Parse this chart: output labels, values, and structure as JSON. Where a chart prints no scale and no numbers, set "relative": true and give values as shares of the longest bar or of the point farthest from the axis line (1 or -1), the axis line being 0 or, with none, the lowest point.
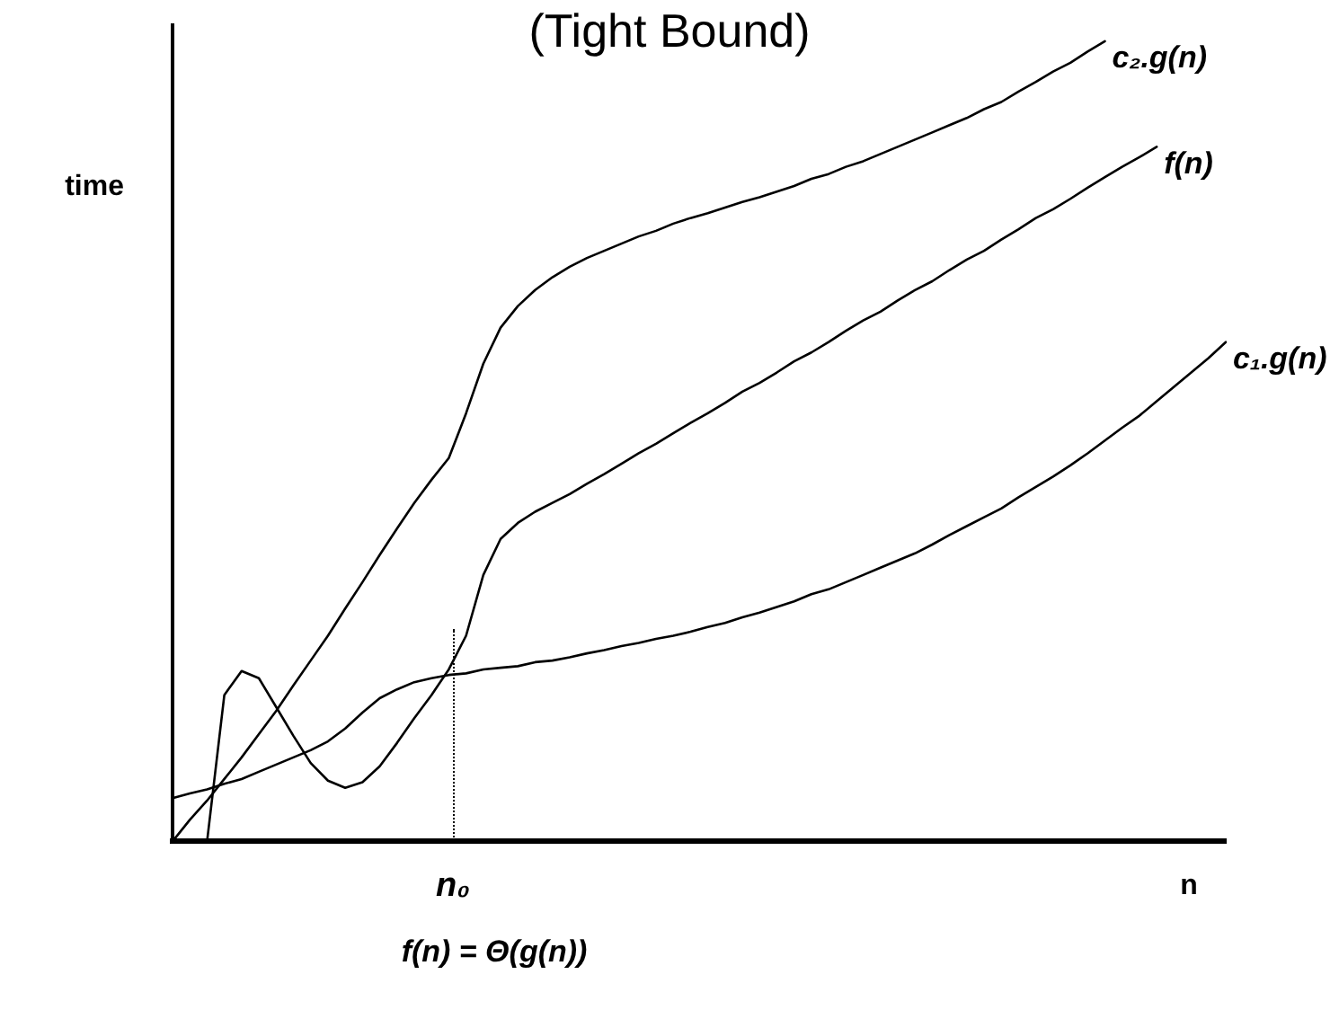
{
  "chart_data": {
    "type": "line",
    "title": "(Tight Bound)",
    "xlabel": "n",
    "ylabel": "time",
    "annotations": [
      "n₀",
      "f(n) = Θ(g(n))"
    ],
    "relative": true,
    "marker": "none",
    "line_style": "solid",
    "tick_labels": "x",
    "categories": [
      null,
      null,
      null,
      null,
      null,
      null,
      null,
      null,
      null,
      null,
      null,
      null,
      null,
      null,
      null,
      null,
      null,
      null,
      null,
      null,
      null,
      null,
      null,
      null,
      null,
      null,
      null,
      null,
      null,
      null,
      null,
      null,
      null,
      null,
      null,
      null,
      null,
      null,
      null,
      null,
      null,
      null,
      null,
      null,
      null,
      null,
      null,
      null,
      null,
      null,
      null,
      null,
      null,
      null,
      null,
      null,
      null,
      null,
      null,
      null,
      null,
      null
    ],
    "series": [
      {
        "name": "c₂.g(n)",
        "color": "#000000",
        "values": [
          0,
          0.027,
          0.051,
          0.078,
          0.105,
          0.134,
          0.163,
          0.195,
          0.226,
          0.257,
          0.291,
          0.324,
          0.358,
          0.391,
          0.423,
          0.452,
          0.479,
          0.535,
          0.597,
          0.642,
          0.669,
          0.689,
          0.705,
          0.718,
          0.729,
          0.738,
          0.747,
          0.756,
          0.763,
          0.772,
          0.779,
          0.785,
          0.792,
          0.799,
          0.805,
          0.812,
          0.819,
          0.828,
          0.834,
          0.843,
          0.85,
          0.859,
          0.868,
          0.877,
          0.886,
          0.895,
          0.904,
          0.915,
          0.924,
          0.937,
          0.949,
          0.962,
          0.973,
          0.987,
          1,
          null,
          null,
          null,
          null,
          null,
          null,
          null
        ]
      },
      {
        "name": "f(n)",
        "color": "#000000",
        "values": [
          null,
          null,
          0,
          0.183,
          0.213,
          0.204,
          0.168,
          0.132,
          0.098,
          0.076,
          0.067,
          0.074,
          0.094,
          0.123,
          0.154,
          0.183,
          0.215,
          0.257,
          0.333,
          0.378,
          0.398,
          0.412,
          0.423,
          0.434,
          0.447,
          0.459,
          0.472,
          0.485,
          0.497,
          0.51,
          0.523,
          0.535,
          0.548,
          0.562,
          0.573,
          0.586,
          0.6,
          0.611,
          0.624,
          0.638,
          0.651,
          0.662,
          0.676,
          0.689,
          0.7,
          0.714,
          0.727,
          0.738,
          0.752,
          0.765,
          0.779,
          0.79,
          0.803,
          0.817,
          0.83,
          0.843,
          0.855,
          0.868,
          null,
          null,
          null,
          null
        ]
      },
      {
        "name": "c₁.g(n)",
        "color": "#000000",
        "values": [
          0.054,
          0.06,
          0.065,
          0.072,
          0.078,
          0.087,
          0.096,
          0.105,
          0.114,
          0.125,
          0.141,
          0.161,
          0.179,
          0.19,
          0.199,
          0.204,
          0.208,
          0.21,
          0.215,
          0.217,
          0.219,
          0.224,
          0.226,
          0.23,
          0.235,
          0.239,
          0.244,
          0.248,
          0.253,
          0.257,
          0.262,
          0.268,
          0.273,
          0.28,
          0.286,
          0.293,
          0.3,
          0.309,
          0.315,
          0.324,
          0.333,
          0.342,
          0.351,
          0.36,
          0.371,
          0.383,
          0.394,
          0.405,
          0.416,
          0.43,
          0.443,
          0.456,
          0.47,
          0.485,
          0.501,
          0.517,
          0.532,
          0.55,
          0.568,
          0.586,
          0.604,
          0.624
        ]
      }
    ]
  }
}
